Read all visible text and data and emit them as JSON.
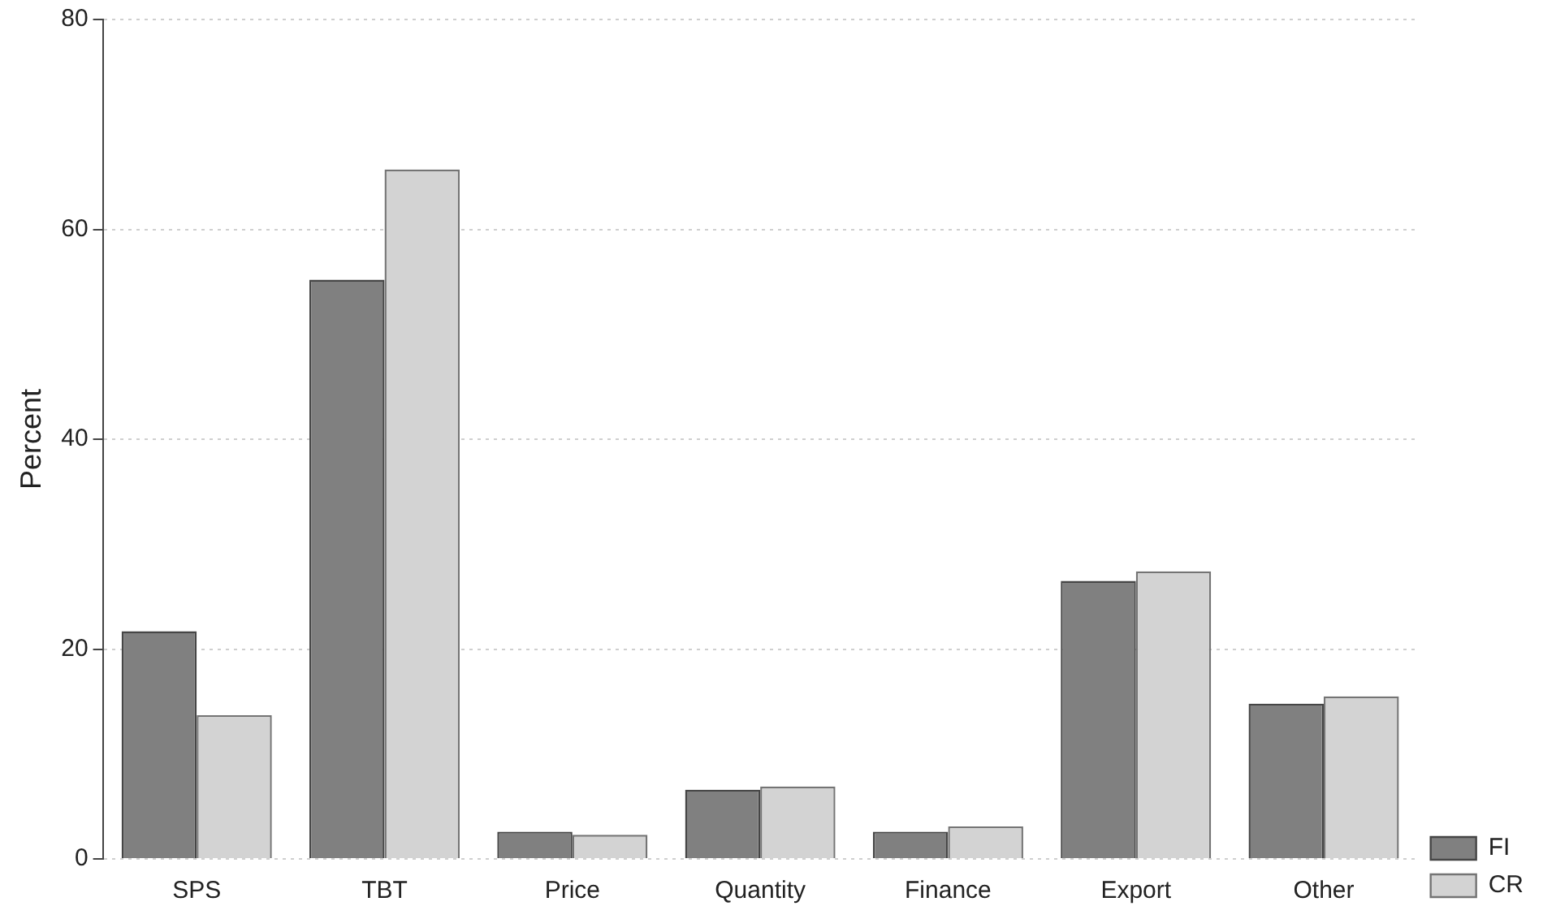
{
  "chart_data": {
    "type": "bar",
    "ylabel": "Percent",
    "categories": [
      "SPS",
      "TBT",
      "Price",
      "Quantity",
      "Finance",
      "Export",
      "Other"
    ],
    "series": [
      {
        "name": "FI",
        "color": "#808080",
        "values": [
          21.7,
          55.2,
          2.6,
          6.6,
          2.6,
          26.5,
          14.8
        ]
      },
      {
        "name": "CR",
        "color": "#d3d3d3",
        "values": [
          13.7,
          65.7,
          2.3,
          6.9,
          3.1,
          27.4,
          15.5
        ]
      }
    ],
    "ylim": [
      0,
      80
    ],
    "yticks": [
      0,
      20,
      40,
      60,
      80
    ],
    "grid": "y",
    "legend": "bottom right"
  }
}
